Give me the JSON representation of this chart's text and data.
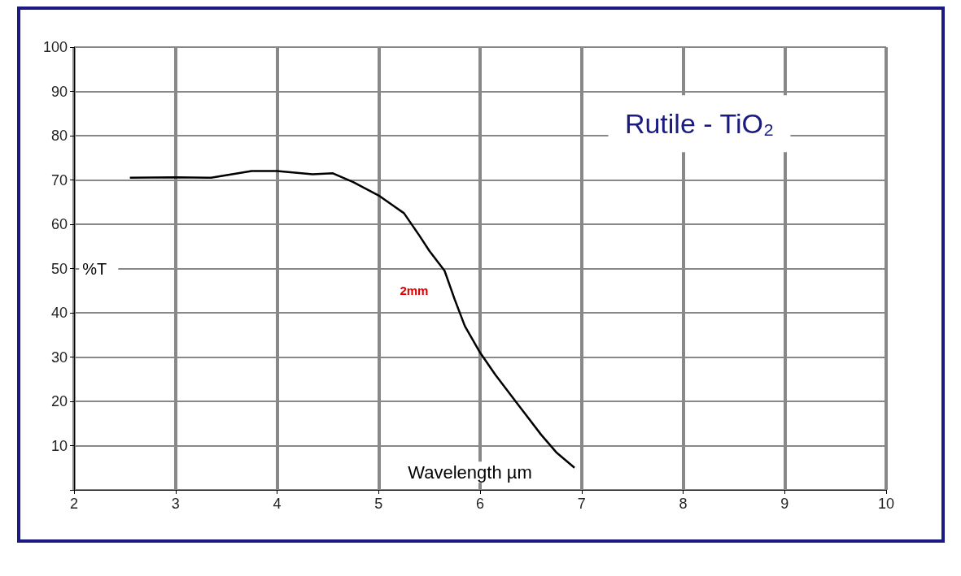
{
  "chart_data": {
    "type": "line",
    "title": "Rutile - TiO₂",
    "xlabel": "Wavelength µm",
    "ylabel": "%T",
    "annotations": [
      "2mm"
    ],
    "series": [
      {
        "color": "#000000",
        "x": [
          2.55,
          3.0,
          3.35,
          3.75,
          4.0,
          4.35,
          4.55,
          4.75,
          5.0,
          5.25,
          5.4,
          5.5,
          5.65,
          5.75,
          5.85,
          6.0,
          6.15,
          6.4,
          6.6,
          6.75,
          6.93
        ],
        "values": [
          70.5,
          70.6,
          70.5,
          72,
          72,
          71.3,
          71.5,
          69.5,
          66.5,
          62.5,
          57.5,
          54,
          49.5,
          43,
          37,
          31,
          26,
          18.5,
          12.5,
          8.5,
          5
        ]
      }
    ],
    "xlim": [
      2,
      10
    ],
    "xticks": [
      2,
      3,
      4,
      5,
      6,
      7,
      8,
      9,
      10
    ],
    "ylim": [
      0,
      100
    ],
    "yticks": [
      {
        "value": 0,
        "label": null
      },
      10,
      20,
      30,
      40,
      50,
      60,
      70,
      80,
      90,
      100
    ],
    "grid": true,
    "marker": "none",
    "line_style": "solid"
  }
}
